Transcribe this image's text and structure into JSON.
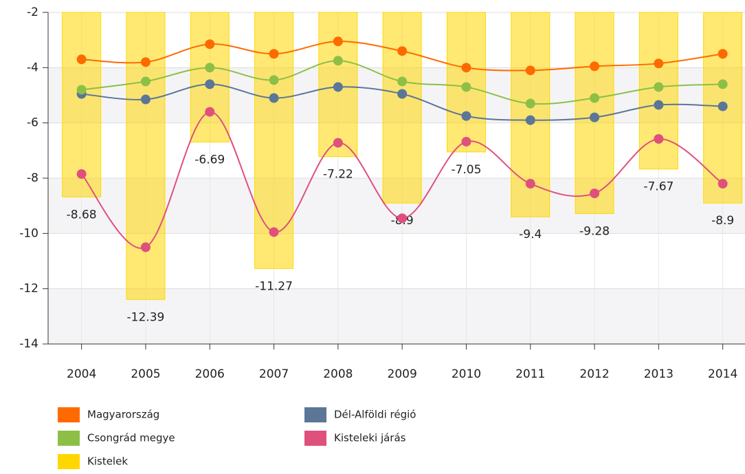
{
  "chart_data": {
    "type": "line",
    "categories": [
      "2004",
      "2005",
      "2006",
      "2007",
      "2008",
      "2009",
      "2010",
      "2011",
      "2012",
      "2013",
      "2014"
    ],
    "ylim": [
      -14,
      -2
    ],
    "yticks": [
      -14,
      -12,
      -10,
      -8,
      -6,
      -4,
      -2
    ],
    "grid": true,
    "alternate_grid": true,
    "legend": "bottom",
    "series": [
      {
        "name": "Magyarország",
        "color": "#ff6a00",
        "type": "line",
        "values": [
          -3.7,
          -3.8,
          -3.15,
          -3.5,
          -3.05,
          -3.4,
          -4.0,
          -4.1,
          -3.95,
          -3.85,
          -3.5
        ]
      },
      {
        "name": "Dél-Alföldi régió",
        "color": "#5b7697",
        "type": "line",
        "values": [
          -4.95,
          -5.15,
          -4.6,
          -5.1,
          -4.7,
          -4.95,
          -5.75,
          -5.9,
          -5.8,
          -5.35,
          -5.4
        ]
      },
      {
        "name": "Csongrád megye",
        "color": "#8dbf46",
        "type": "line",
        "values": [
          -4.8,
          -4.5,
          -4.0,
          -4.45,
          -3.75,
          -4.5,
          -4.7,
          -5.3,
          -5.1,
          -4.7,
          -4.6
        ]
      },
      {
        "name": "Kisteleki járás",
        "color": "#e0507c",
        "type": "line",
        "values": [
          -7.85,
          -10.5,
          -5.6,
          -9.95,
          -6.72,
          -9.45,
          -6.68,
          -8.2,
          -8.55,
          -6.58,
          -8.2
        ]
      },
      {
        "name": "Kistelek",
        "color": "#ffd700",
        "type": "bar",
        "values": [
          -8.68,
          -12.39,
          -6.69,
          -11.27,
          -7.22,
          -8.9,
          -7.05,
          -9.4,
          -9.28,
          -7.67,
          -8.9
        ]
      }
    ]
  }
}
